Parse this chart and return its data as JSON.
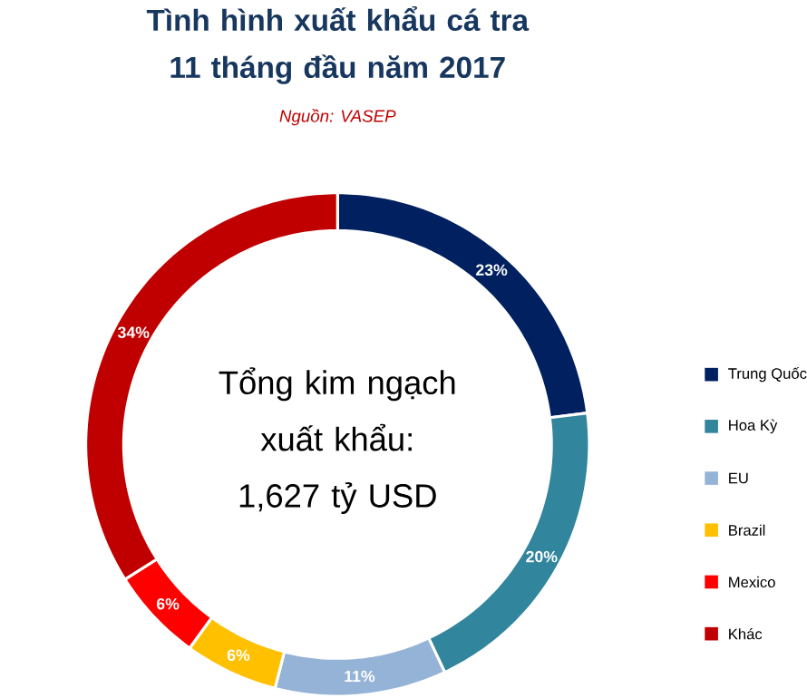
{
  "chart_data": {
    "type": "donut",
    "title": "Tình hình xuất khẩu cá tra 11 tháng đầu năm 2017",
    "categories": [
      "Trung Quốc",
      "Hoa Kỳ",
      "EU",
      "Brazil",
      "Mexico",
      "Khác"
    ],
    "values": [
      23,
      20,
      11,
      6,
      6,
      34
    ],
    "value_labels": [
      "23%",
      "20%",
      "11%",
      "6%",
      "6%",
      "34%"
    ],
    "colors": [
      "#002060",
      "#31859c",
      "#95b3d7",
      "#ffc000",
      "#ff0000",
      "#c00000"
    ],
    "annotations": [
      "Tổng kim ngạch xuất khẩu: 1,627 tỷ USD",
      "Nguồn: VASEP"
    ],
    "legend": "right"
  }
}
